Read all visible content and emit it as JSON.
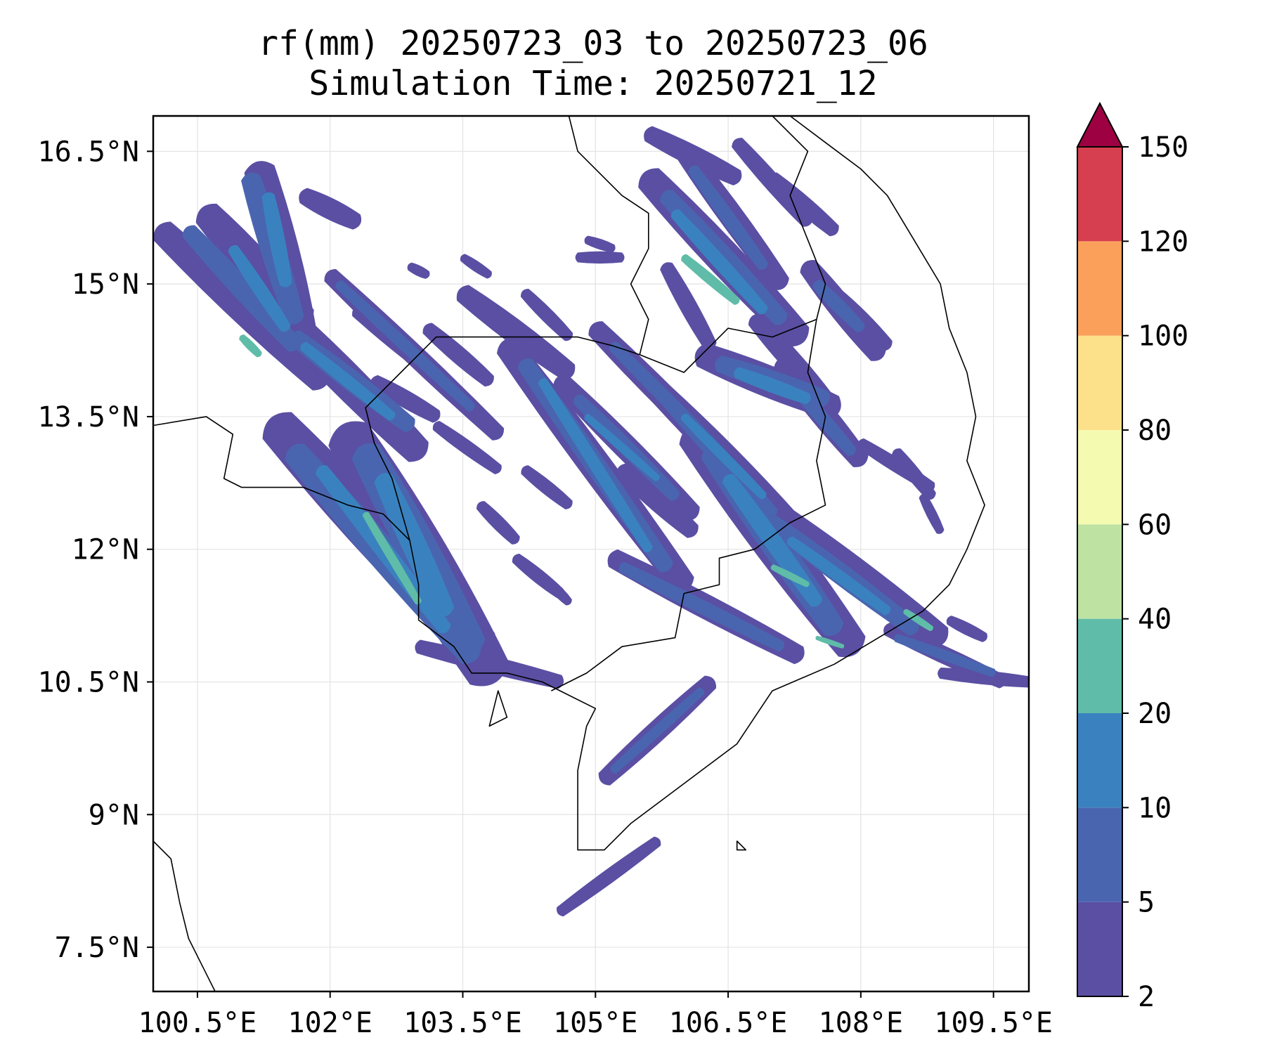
{
  "title": {
    "line1": "rf(mm) 20250723_03 to 20250723_06",
    "line2": "Simulation Time: 20250721_12"
  },
  "map": {
    "projection": "PlateCarree",
    "lon_range": [
      100.0,
      109.9
    ],
    "lat_range": [
      7.0,
      16.9
    ],
    "x_ticks": [
      {
        "value": 100.5,
        "label": "100.5°E"
      },
      {
        "value": 102.0,
        "label": "102°E"
      },
      {
        "value": 103.5,
        "label": "103.5°E"
      },
      {
        "value": 105.0,
        "label": "105°E"
      },
      {
        "value": 106.5,
        "label": "106.5°E"
      },
      {
        "value": 108.0,
        "label": "108°E"
      },
      {
        "value": 109.5,
        "label": "109.5°E"
      }
    ],
    "y_ticks": [
      {
        "value": 16.5,
        "label": "16.5°N"
      },
      {
        "value": 15.0,
        "label": "15°N"
      },
      {
        "value": 13.5,
        "label": "13.5°N"
      },
      {
        "value": 12.0,
        "label": "12°N"
      },
      {
        "value": 10.5,
        "label": "10.5°N"
      },
      {
        "value": 9.0,
        "label": "9°N"
      },
      {
        "value": 7.5,
        "label": "7.5°N"
      }
    ],
    "gridlines": true,
    "colors": {
      "c2": "#5a4fa3",
      "c5": "#4a65b0",
      "c10": "#3a82bf",
      "c20": "#5fbca8",
      "c40": "#bde2a2",
      "c60": "#f4faaf",
      "c80": "#fde08a",
      "c100": "#fba05b",
      "c120": "#d53f4f",
      "over": "#9e0142",
      "coast": "#000000",
      "grid": "#e3e3e3"
    }
  },
  "colorbar": {
    "extend": "max",
    "levels": [
      {
        "value": 2,
        "label": "2",
        "color": "#5a4fa3"
      },
      {
        "value": 5,
        "label": "5",
        "color": "#4a65b0"
      },
      {
        "value": 10,
        "label": "10",
        "color": "#3a82bf"
      },
      {
        "value": 20,
        "label": "20",
        "color": "#5fbca8"
      },
      {
        "value": 40,
        "label": "40",
        "color": "#bde2a2"
      },
      {
        "value": 60,
        "label": "60",
        "color": "#f4faaf"
      },
      {
        "value": 80,
        "label": "80",
        "color": "#fde08a"
      },
      {
        "value": 100,
        "label": "100",
        "color": "#fba05b"
      },
      {
        "value": 120,
        "label": "120",
        "color": "#d53f4f"
      },
      {
        "value": 150,
        "label": "150",
        "color": "#9e0142"
      }
    ]
  }
}
